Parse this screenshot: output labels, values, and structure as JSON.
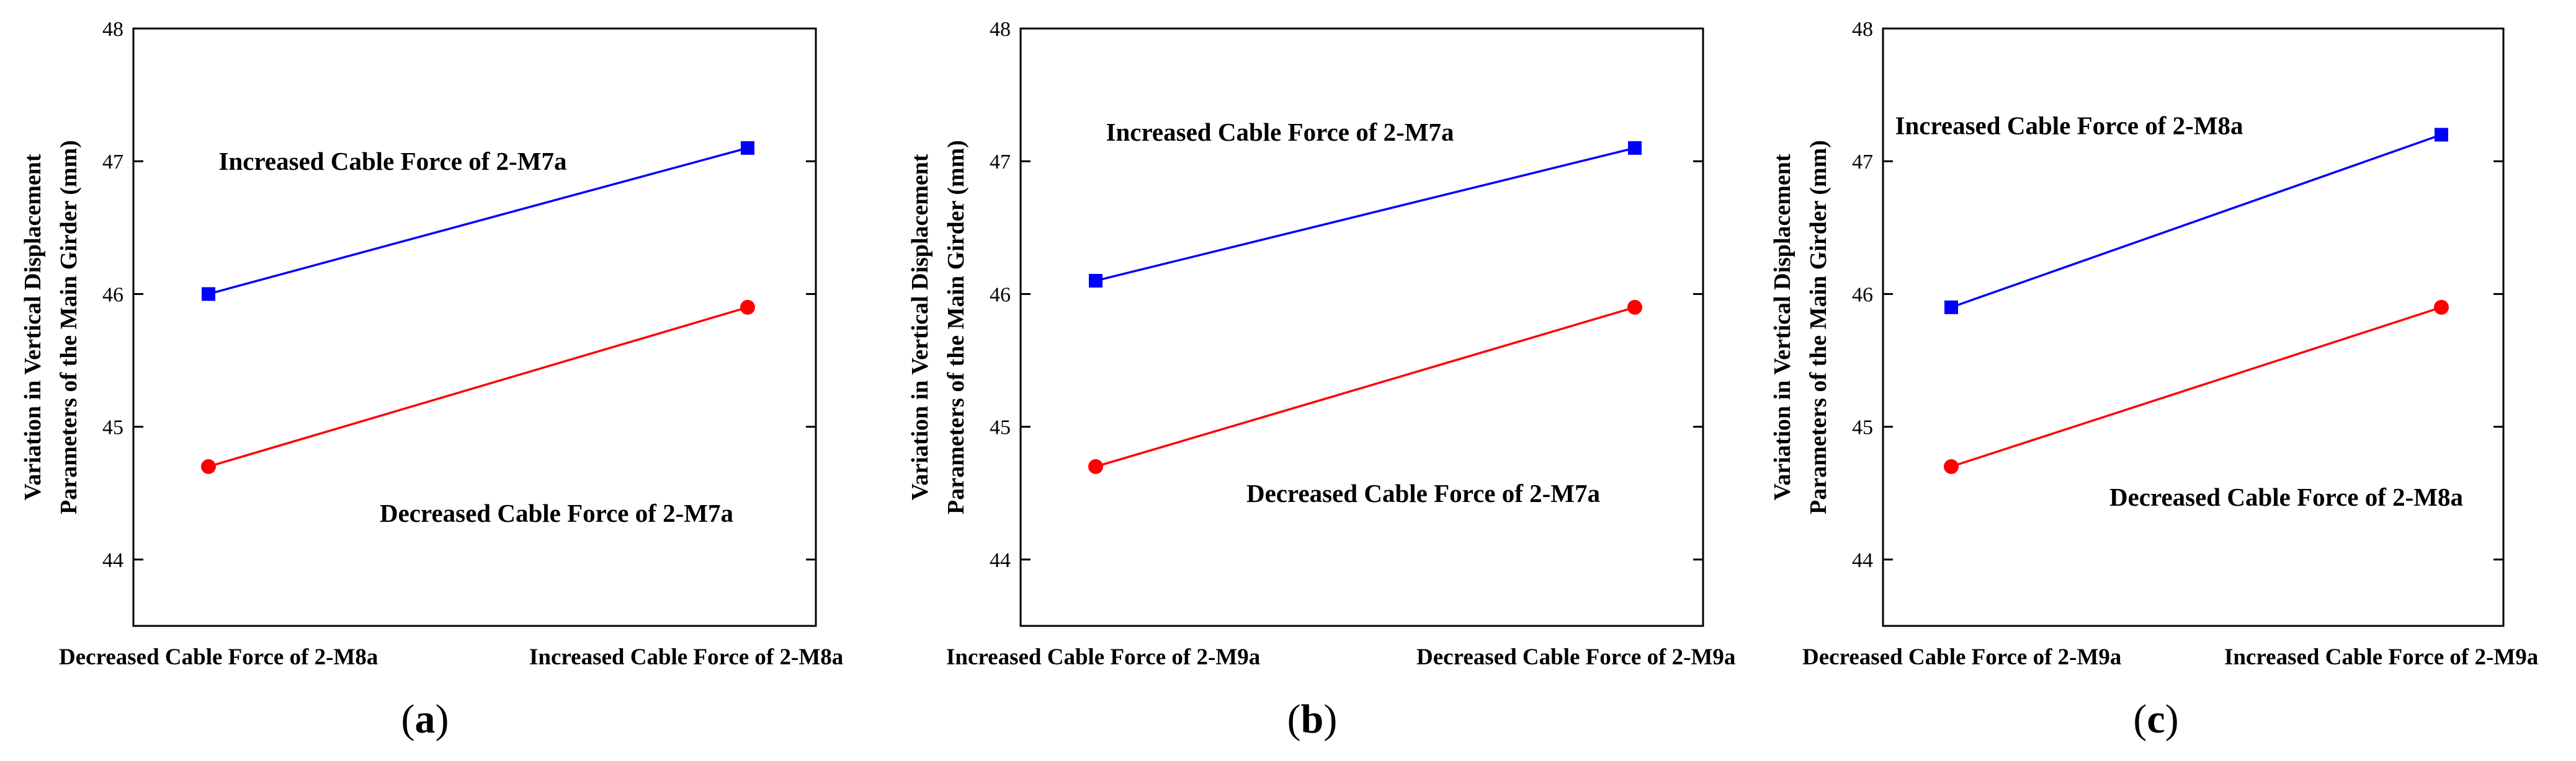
{
  "chart_data": [
    {
      "type": "line",
      "panel_label": "a",
      "ylabel_line1": "Variation in Vertical Displacement",
      "ylabel_line2": "Parameters of the Main Girder (mm)",
      "ylim": [
        43.5,
        48
      ],
      "yticks": [
        44,
        45,
        46,
        47,
        48
      ],
      "categories": [
        "Decreased Cable Force of 2-M8a",
        "Increased Cable Force of 2-M8a"
      ],
      "series": [
        {
          "name": "Increased Cable Force of 2-M7a",
          "color": "#0000ff",
          "marker": "square",
          "values": [
            46.0,
            47.1
          ]
        },
        {
          "name": "Decreased Cable Force of 2-M7a",
          "color": "#ff0000",
          "marker": "circle",
          "values": [
            44.7,
            45.9
          ]
        }
      ]
    },
    {
      "type": "line",
      "panel_label": "b",
      "ylabel_line1": "Variation in Vertical Displacement",
      "ylabel_line2": "Parameters of the Main Girder (mm)",
      "ylim": [
        43.5,
        48
      ],
      "yticks": [
        44,
        45,
        46,
        47,
        48
      ],
      "categories": [
        "Increased Cable Force of 2-M9a",
        "Decreased Cable Force of 2-M9a"
      ],
      "series": [
        {
          "name": "Increased Cable Force of 2-M7a",
          "color": "#0000ff",
          "marker": "square",
          "values": [
            46.1,
            47.1
          ]
        },
        {
          "name": "Decreased Cable Force of 2-M7a",
          "color": "#ff0000",
          "marker": "circle",
          "values": [
            44.7,
            45.9
          ]
        }
      ]
    },
    {
      "type": "line",
      "panel_label": "c",
      "ylabel_line1": "Variation in Vertical Displacement",
      "ylabel_line2": "Parameters of the Main Girder (mm)",
      "ylim": [
        43.5,
        48
      ],
      "yticks": [
        44,
        45,
        46,
        47,
        48
      ],
      "categories": [
        "Decreased Cable Force of 2-M9a",
        "Increased Cable Force of 2-M9a"
      ],
      "series": [
        {
          "name": "Increased Cable Force of 2-M8a",
          "color": "#0000ff",
          "marker": "square",
          "values": [
            45.9,
            47.2
          ]
        },
        {
          "name": "Decreased Cable Force of 2-M8a",
          "color": "#ff0000",
          "marker": "circle",
          "values": [
            44.7,
            45.9
          ]
        }
      ]
    }
  ]
}
